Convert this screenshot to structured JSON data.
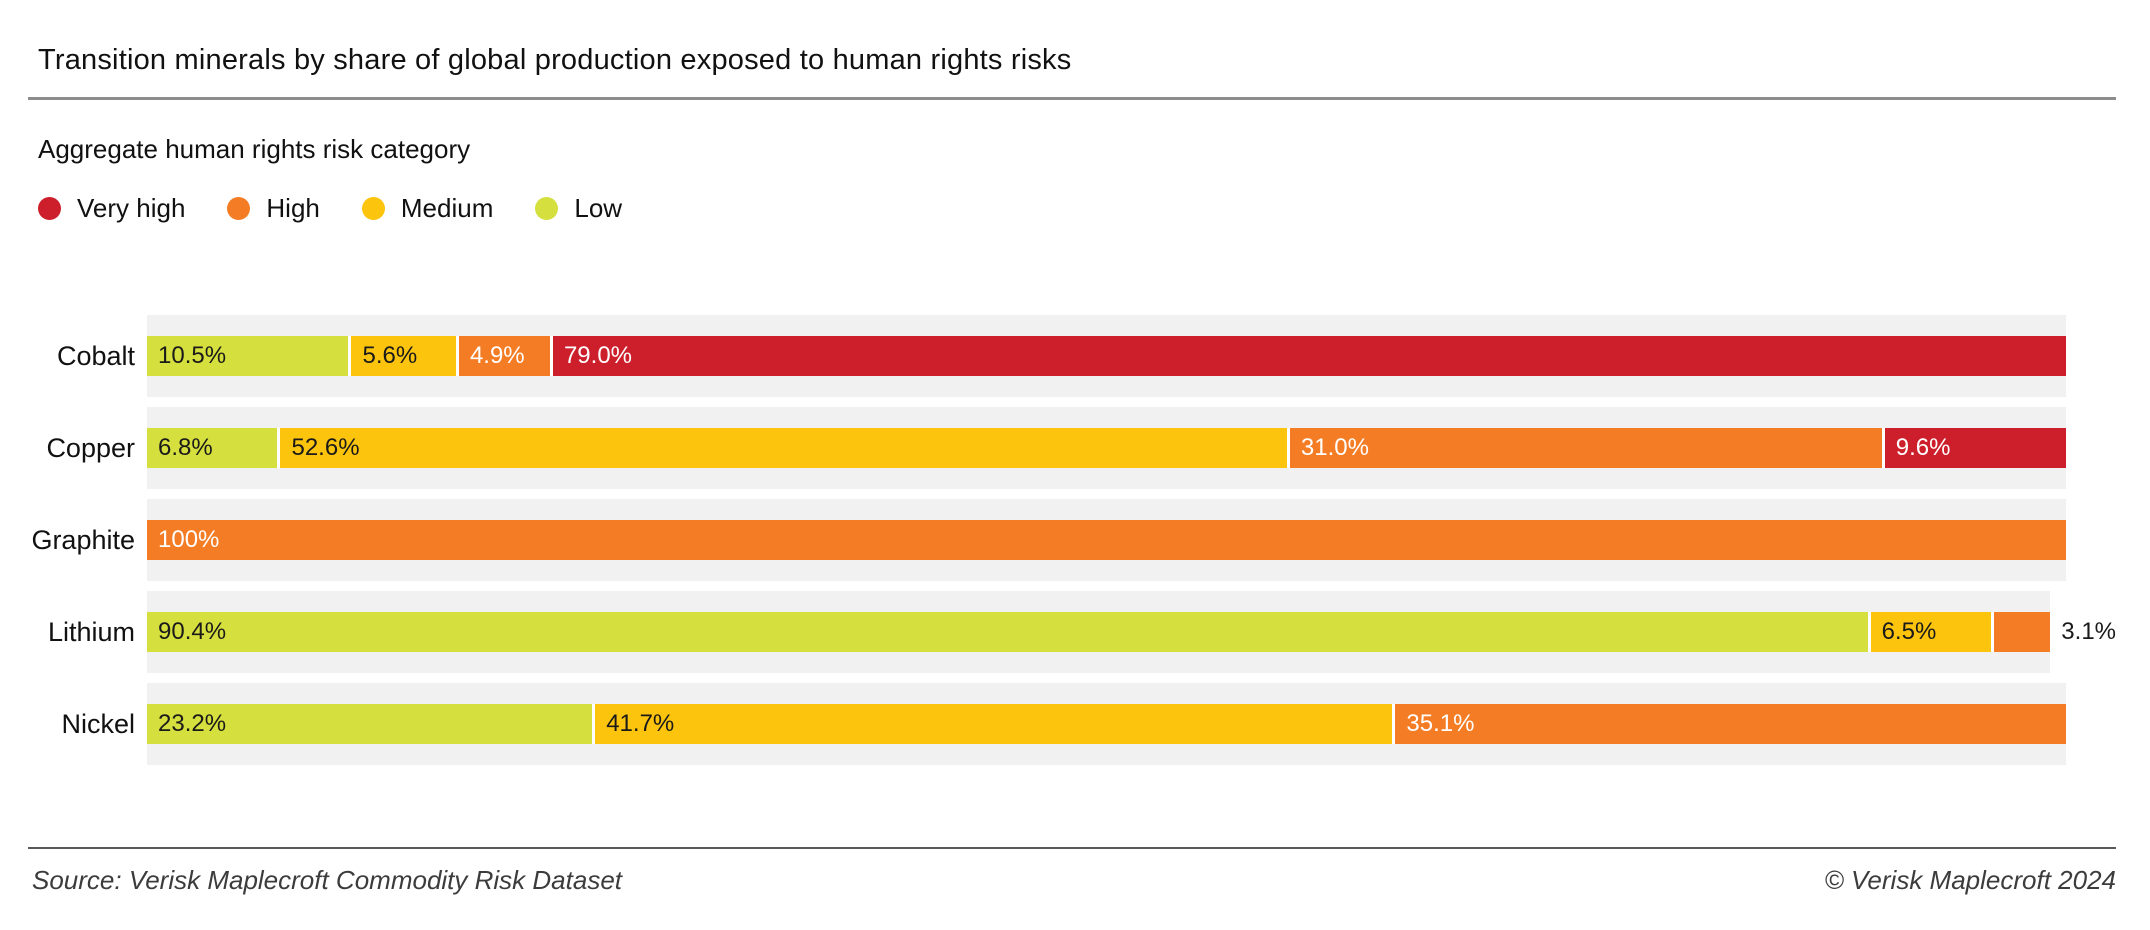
{
  "header": {
    "title": "Transition minerals by share of global production exposed to human rights risks"
  },
  "legend": {
    "heading": "Aggregate human rights risk category",
    "items": [
      {
        "label": "Very high",
        "color": "#cd1f2b"
      },
      {
        "label": "High",
        "color": "#f47c24"
      },
      {
        "label": "Medium",
        "color": "#fdc40d"
      },
      {
        "label": "Low",
        "color": "#d5df3d"
      }
    ]
  },
  "chart_data": {
    "type": "bar",
    "orientation": "horizontal",
    "stacked": true,
    "unit": "%",
    "xlim": [
      0,
      100
    ],
    "axis_visible": false,
    "grid": false,
    "track_color": "#f1f1f1",
    "categories": [
      "Low",
      "Medium",
      "High",
      "Very high"
    ],
    "series_colors": {
      "Low": "#d5df3d",
      "Medium": "#fdc40d",
      "High": "#f47c24",
      "Very high": "#cd1f2b"
    },
    "label_text_colors": {
      "Low": "#1a1a1a",
      "Medium": "#1a1a1a",
      "High": "#ffffff",
      "Very high": "#ffffff"
    },
    "rows": [
      {
        "mineral": "Cobalt",
        "segments": [
          {
            "category": "Low",
            "value": 10.5,
            "label": "10.5%"
          },
          {
            "category": "Medium",
            "value": 5.6,
            "label": "5.6%"
          },
          {
            "category": "High",
            "value": 4.9,
            "label": "4.9%"
          },
          {
            "category": "Very high",
            "value": 79.0,
            "label": "79.0%"
          }
        ]
      },
      {
        "mineral": "Copper",
        "segments": [
          {
            "category": "Low",
            "value": 6.8,
            "label": "6.8%"
          },
          {
            "category": "Medium",
            "value": 52.6,
            "label": "52.6%"
          },
          {
            "category": "High",
            "value": 31.0,
            "label": "31.0%"
          },
          {
            "category": "Very high",
            "value": 9.6,
            "label": "9.6%"
          }
        ]
      },
      {
        "mineral": "Graphite",
        "segments": [
          {
            "category": "High",
            "value": 100,
            "label": "100%"
          }
        ]
      },
      {
        "mineral": "Lithium",
        "segments": [
          {
            "category": "Low",
            "value": 90.4,
            "label": "90.4%"
          },
          {
            "category": "Medium",
            "value": 6.5,
            "label": "6.5%"
          },
          {
            "category": "High",
            "value": 3.1,
            "label": "3.1%",
            "label_outside": true
          }
        ]
      },
      {
        "mineral": "Nickel",
        "segments": [
          {
            "category": "Low",
            "value": 23.2,
            "label": "23.2%"
          },
          {
            "category": "Medium",
            "value": 41.7,
            "label": "41.7%"
          },
          {
            "category": "High",
            "value": 35.1,
            "label": "35.1%"
          }
        ]
      }
    ]
  },
  "footer": {
    "source": "Source: Verisk Maplecroft Commodity Risk Dataset",
    "copyright": "© Verisk Maplecroft 2024"
  }
}
